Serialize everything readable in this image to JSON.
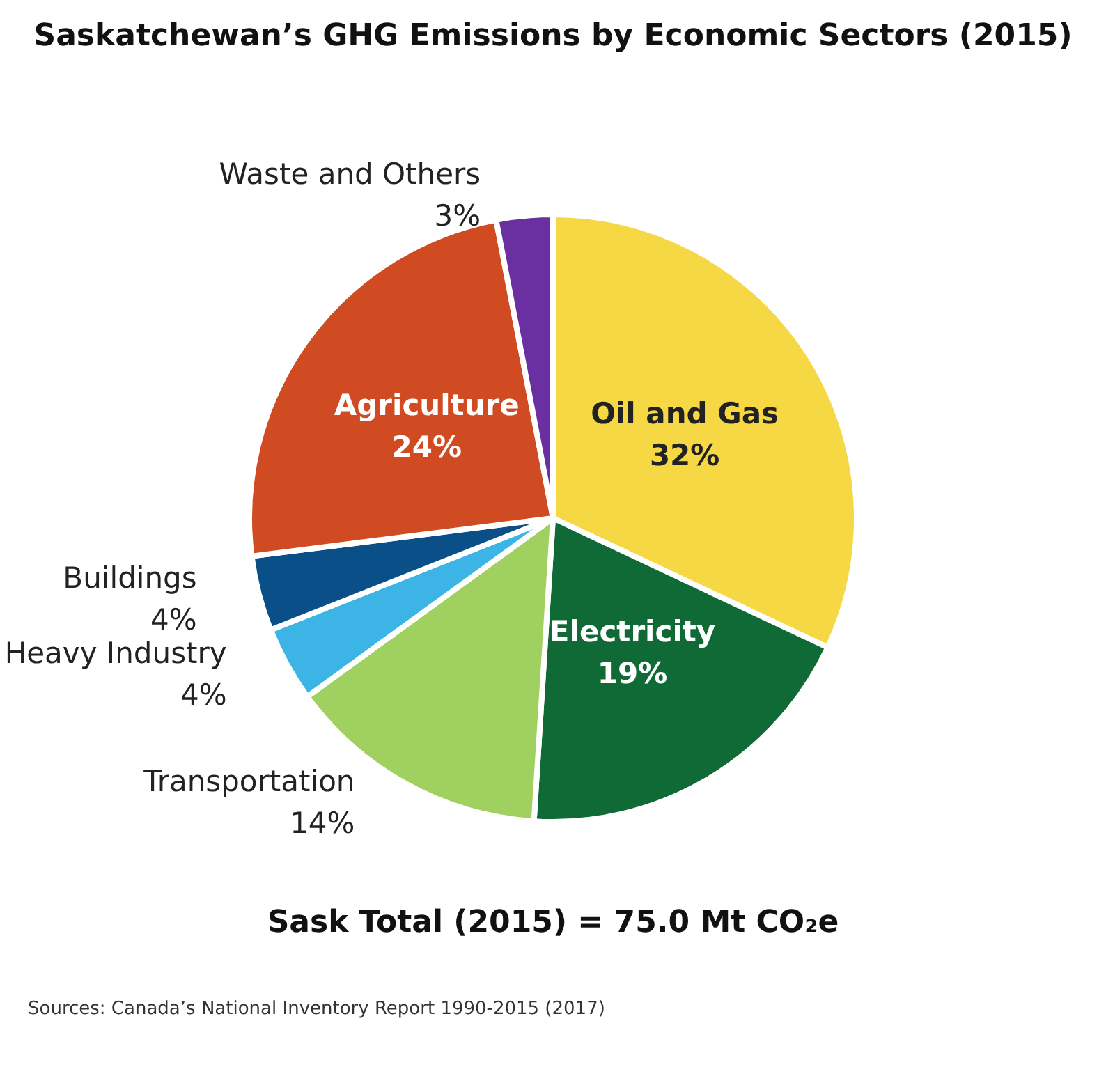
{
  "chart_data": {
    "type": "pie",
    "title": "Saskatchewan’s GHG Emissions by Economic Sectors (2015)",
    "categories": [
      "Oil and Gas",
      "Electricity",
      "Transportation",
      "Heavy Industry",
      "Buildings",
      "Agriculture",
      "Waste and Others"
    ],
    "values": [
      32,
      19,
      14,
      4,
      4,
      24,
      3
    ],
    "colors": [
      "#f6d844",
      "#0f6a36",
      "#a0d060",
      "#3cb4e6",
      "#0b4f88",
      "#d04b22",
      "#6a2fa0"
    ],
    "value_labels": [
      "32%",
      "19%",
      "14%",
      "4%",
      "4%",
      "24%",
      "3%"
    ],
    "annotations": [
      "Sask Total (2015) = 75.0 Mt CO₂e",
      "Sources: Canada’s National Inventory Report 1990-2015 (2017)"
    ]
  }
}
